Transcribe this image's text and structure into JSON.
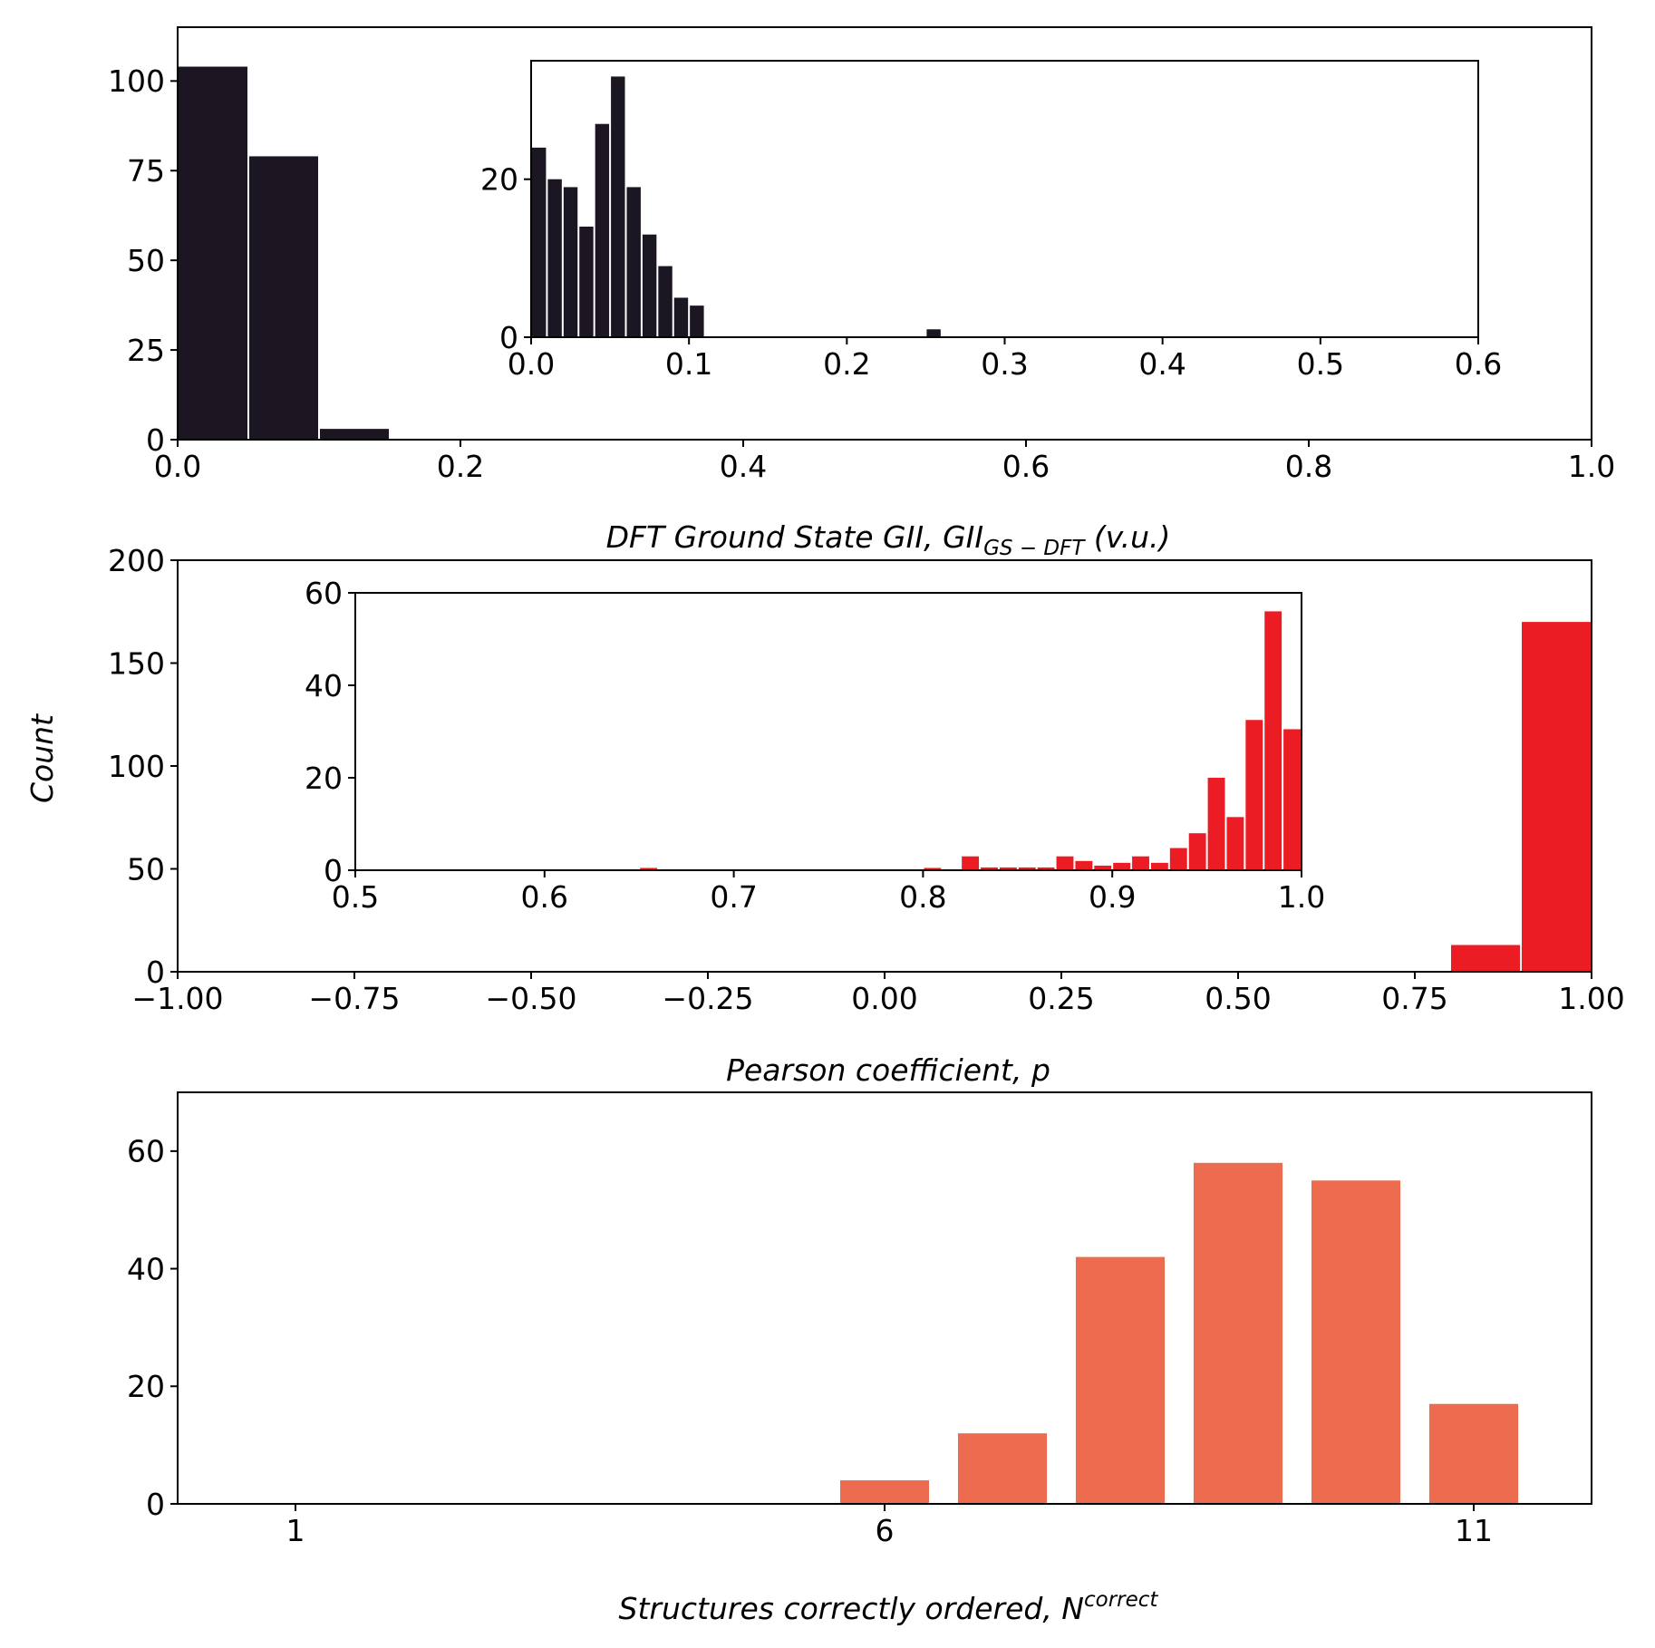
{
  "shared": {
    "ylabel": "Count"
  },
  "chart_data": [
    {
      "type": "bar",
      "id": "gii",
      "xlabel_main": "DFT  Ground  State  GII,  GII",
      "xlabel_sub": "GS − DFT",
      "xlabel_tail": "  (v.u.)",
      "xlim": [
        0,
        1.0
      ],
      "ylim": [
        0,
        115
      ],
      "xticks": [
        "0.0",
        "0.2",
        "0.4",
        "0.6",
        "0.8",
        "1.0"
      ],
      "yticks": [
        "0",
        "25",
        "50",
        "75",
        "100"
      ],
      "bar_color": "#1c1622",
      "bars": [
        {
          "x0": 0.0,
          "x1": 0.05,
          "value": 104
        },
        {
          "x0": 0.05,
          "x1": 0.1,
          "value": 79
        },
        {
          "x0": 0.1,
          "x1": 0.15,
          "value": 3
        }
      ],
      "inset": {
        "xlim": [
          0,
          0.6
        ],
        "ylim": [
          0,
          35
        ],
        "xticks": [
          "0.0",
          "0.1",
          "0.2",
          "0.3",
          "0.4",
          "0.5",
          "0.6"
        ],
        "yticks": [
          "0",
          "20"
        ],
        "bars": [
          {
            "x0": 0.0,
            "x1": 0.01,
            "value": 24
          },
          {
            "x0": 0.01,
            "x1": 0.02,
            "value": 20
          },
          {
            "x0": 0.02,
            "x1": 0.03,
            "value": 19
          },
          {
            "x0": 0.03,
            "x1": 0.04,
            "value": 14
          },
          {
            "x0": 0.04,
            "x1": 0.05,
            "value": 27
          },
          {
            "x0": 0.05,
            "x1": 0.06,
            "value": 33
          },
          {
            "x0": 0.06,
            "x1": 0.07,
            "value": 19
          },
          {
            "x0": 0.07,
            "x1": 0.08,
            "value": 13
          },
          {
            "x0": 0.08,
            "x1": 0.09,
            "value": 9
          },
          {
            "x0": 0.09,
            "x1": 0.1,
            "value": 5
          },
          {
            "x0": 0.1,
            "x1": 0.11,
            "value": 4
          },
          {
            "x0": 0.25,
            "x1": 0.26,
            "value": 1
          }
        ]
      }
    },
    {
      "type": "bar",
      "id": "pearson",
      "xlabel_main": "Pearson  coefficient,  p",
      "xlim": [
        -1.0,
        1.0
      ],
      "ylim": [
        0,
        200
      ],
      "xticks": [
        "−1.00",
        "−0.75",
        "−0.50",
        "−0.25",
        "0.00",
        "0.25",
        "0.50",
        "0.75",
        "1.00"
      ],
      "yticks": [
        "0",
        "50",
        "100",
        "150",
        "200"
      ],
      "bar_color": "#ec1c24",
      "bars": [
        {
          "x0": 0.8,
          "x1": 0.9,
          "value": 13
        },
        {
          "x0": 0.9,
          "x1": 1.0,
          "value": 170
        }
      ],
      "inset": {
        "xlim": [
          0.5,
          1.0
        ],
        "ylim": [
          0,
          60
        ],
        "xticks": [
          "0.5",
          "0.6",
          "0.7",
          "0.8",
          "0.9",
          "1.0"
        ],
        "yticks": [
          "0",
          "20",
          "40",
          "60"
        ],
        "bars": [
          {
            "x0": 0.65,
            "x1": 0.66,
            "value": 0.5
          },
          {
            "x0": 0.8,
            "x1": 0.81,
            "value": 0.5
          },
          {
            "x0": 0.82,
            "x1": 0.83,
            "value": 3
          },
          {
            "x0": 0.83,
            "x1": 0.84,
            "value": 0.6
          },
          {
            "x0": 0.84,
            "x1": 0.85,
            "value": 0.6
          },
          {
            "x0": 0.85,
            "x1": 0.86,
            "value": 0.6
          },
          {
            "x0": 0.86,
            "x1": 0.87,
            "value": 0.6
          },
          {
            "x0": 0.87,
            "x1": 0.88,
            "value": 3
          },
          {
            "x0": 0.88,
            "x1": 0.89,
            "value": 2
          },
          {
            "x0": 0.89,
            "x1": 0.9,
            "value": 1
          },
          {
            "x0": 0.9,
            "x1": 0.91,
            "value": 1.6
          },
          {
            "x0": 0.91,
            "x1": 0.92,
            "value": 3
          },
          {
            "x0": 0.92,
            "x1": 0.93,
            "value": 1.6
          },
          {
            "x0": 0.93,
            "x1": 0.94,
            "value": 4.8
          },
          {
            "x0": 0.94,
            "x1": 0.95,
            "value": 8
          },
          {
            "x0": 0.95,
            "x1": 0.96,
            "value": 20
          },
          {
            "x0": 0.96,
            "x1": 0.97,
            "value": 11.5
          },
          {
            "x0": 0.97,
            "x1": 0.98,
            "value": 32.5
          },
          {
            "x0": 0.98,
            "x1": 0.99,
            "value": 56
          },
          {
            "x0": 0.99,
            "x1": 1.0,
            "value": 30.5
          }
        ]
      }
    },
    {
      "type": "bar",
      "id": "ordered",
      "xlabel_main": "Structures  correctly  ordered,  N",
      "xlabel_sup": "correct",
      "xlim": [
        0,
        12
      ],
      "ylim": [
        0,
        70
      ],
      "xticks": [
        {
          "value": 1,
          "label": "1"
        },
        {
          "value": 6,
          "label": "6"
        },
        {
          "value": 11,
          "label": "11"
        }
      ],
      "yticks": [
        "0",
        "20",
        "40",
        "60"
      ],
      "bar_color": "#ed6b4f",
      "categories": [
        6,
        7,
        8,
        9,
        10,
        11
      ],
      "values": [
        4,
        12,
        42,
        58,
        55,
        17
      ]
    }
  ]
}
